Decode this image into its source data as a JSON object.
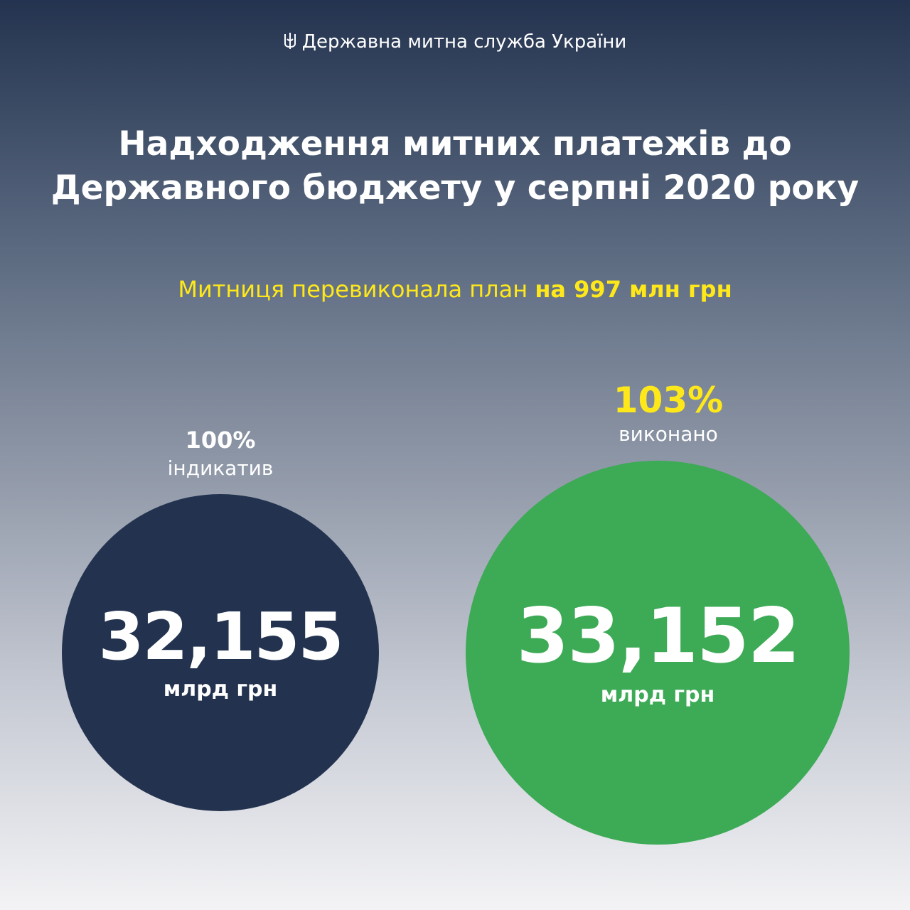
{
  "header": {
    "org": "Державна митна служба України"
  },
  "title": {
    "lines": [
      "Надходження митних платежів до",
      "Державного бюджету у серпні 2020 року"
    ]
  },
  "subtitle": {
    "text": "Митниця перевиконала план",
    "emphasis": "на 997 млн грн"
  },
  "circles": [
    {
      "percent": "100%",
      "caption": "індикатив",
      "value": "32,155",
      "unit": "млрд грн"
    },
    {
      "percent": "103%",
      "caption": "виконано",
      "value": "33,152",
      "unit": "млрд грн"
    }
  ]
}
